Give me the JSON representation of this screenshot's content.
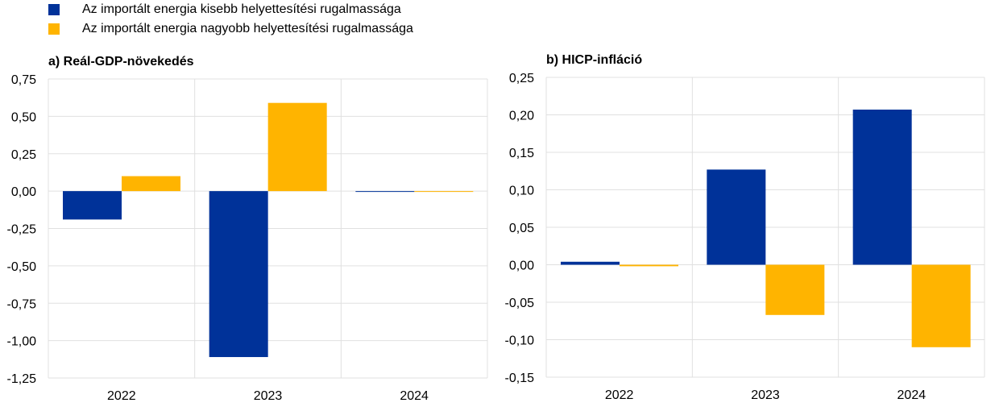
{
  "legend": [
    {
      "label": "Az importált energia kisebb helyettesítési rugalmassága",
      "color": "#003299"
    },
    {
      "label": "Az importált energia nagyobb helyettesítési rugalmassága",
      "color": "#FFB400"
    }
  ],
  "chart_data": [
    {
      "type": "bar",
      "title": "a) Reál-GDP-növekedés",
      "categories": [
        "2022",
        "2023",
        "2024"
      ],
      "ylim": [
        -1.25,
        0.75
      ],
      "yticks": [
        "0,75",
        "0,50",
        "0,25",
        "0,00",
        "-0,25",
        "-0,50",
        "-0,75",
        "-1,00",
        "-1,25"
      ],
      "ytick_values": [
        0.75,
        0.5,
        0.25,
        0,
        -0.25,
        -0.5,
        -0.75,
        -1,
        -1.25
      ],
      "series": [
        {
          "name": "Az importált energia kisebb helyettesítési rugalmassága",
          "values": [
            -0.19,
            -1.11,
            -0.005
          ]
        },
        {
          "name": "Az importált energia nagyobb helyettesítési rugalmassága",
          "values": [
            0.1,
            0.59,
            0.0
          ]
        }
      ],
      "grid": true
    },
    {
      "type": "bar",
      "title": "b) HICP-infláció",
      "categories": [
        "2022",
        "2023",
        "2024"
      ],
      "ylim": [
        -0.15,
        0.25
      ],
      "yticks": [
        "0,25",
        "0,20",
        "0,15",
        "0,10",
        "0,05",
        "0,00",
        "-0,05",
        "-0,10",
        "-0,15"
      ],
      "ytick_values": [
        0.25,
        0.2,
        0.15,
        0.1,
        0.05,
        0,
        -0.05,
        -0.1,
        -0.15
      ],
      "series": [
        {
          "name": "Az importált energia kisebb helyettesítési rugalmassága",
          "values": [
            0.004,
            0.127,
            0.207
          ]
        },
        {
          "name": "Az importált energia nagyobb helyettesítési rugalmassága",
          "values": [
            -0.002,
            -0.067,
            -0.11
          ]
        }
      ],
      "grid": true
    }
  ]
}
